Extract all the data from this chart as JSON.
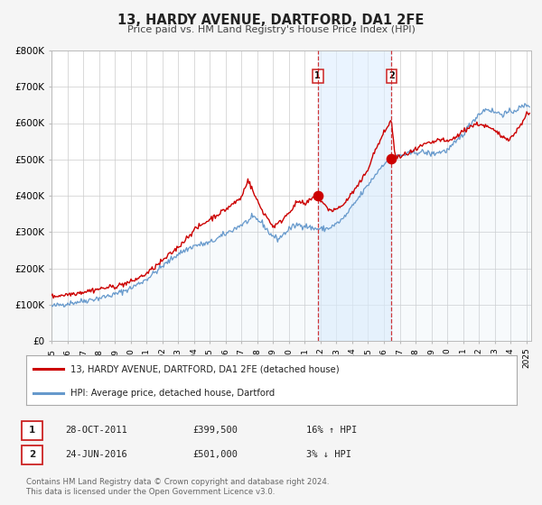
{
  "title": "13, HARDY AVENUE, DARTFORD, DA1 2FE",
  "subtitle": "Price paid vs. HM Land Registry's House Price Index (HPI)",
  "background_color": "#f5f5f5",
  "plot_bg_color": "#ffffff",
  "red_line_color": "#cc0000",
  "blue_line_color": "#6699cc",
  "blue_fill_color": "#cce0f0",
  "grid_color": "#cccccc",
  "ylim": [
    0,
    800000
  ],
  "yticks": [
    0,
    100000,
    200000,
    300000,
    400000,
    500000,
    600000,
    700000,
    800000
  ],
  "ytick_labels": [
    "£0",
    "£100K",
    "£200K",
    "£300K",
    "£400K",
    "£500K",
    "£600K",
    "£700K",
    "£800K"
  ],
  "xmin": 1995.0,
  "xmax": 2025.3,
  "xticks": [
    1995,
    1996,
    1997,
    1998,
    1999,
    2000,
    2001,
    2002,
    2003,
    2004,
    2005,
    2006,
    2007,
    2008,
    2009,
    2010,
    2011,
    2012,
    2013,
    2014,
    2015,
    2016,
    2017,
    2018,
    2019,
    2020,
    2021,
    2022,
    2023,
    2024,
    2025
  ],
  "sale1_x": 2011.82,
  "sale1_y": 399500,
  "sale2_x": 2016.48,
  "sale2_y": 501000,
  "vline1_x": 2011.82,
  "vline2_x": 2016.48,
  "legend_red_label": "13, HARDY AVENUE, DARTFORD, DA1 2FE (detached house)",
  "legend_blue_label": "HPI: Average price, detached house, Dartford",
  "table_row1": [
    "1",
    "28-OCT-2011",
    "£399,500",
    "16% ↑ HPI"
  ],
  "table_row2": [
    "2",
    "24-JUN-2016",
    "£501,000",
    "3% ↓ HPI"
  ],
  "footer": "Contains HM Land Registry data © Crown copyright and database right 2024.\nThis data is licensed under the Open Government Licence v3.0.",
  "shade_color": "#ddeeff",
  "shade_alpha": 0.6
}
